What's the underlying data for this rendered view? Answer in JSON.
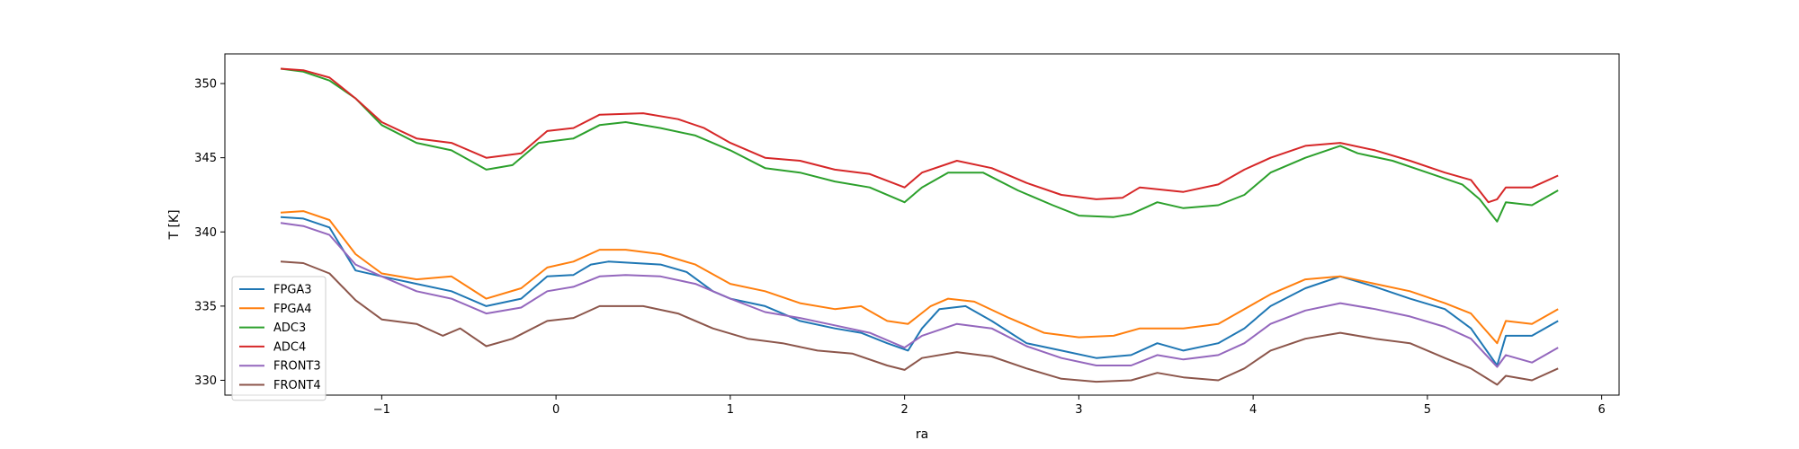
{
  "chart_data": {
    "type": "line",
    "title": "",
    "xlabel": "ra",
    "ylabel": "T [K]",
    "xlim": [
      -1.9,
      6.1
    ],
    "ylim": [
      329.0,
      352.0
    ],
    "xticks": [
      -1,
      0,
      1,
      2,
      3,
      4,
      5,
      6
    ],
    "yticks": [
      330,
      335,
      340,
      345,
      350
    ],
    "grid": false,
    "legend_position": "lower-left",
    "series": [
      {
        "name": "FPGA3",
        "color": "#1f77b4",
        "points": [
          [
            -1.58,
            341.0
          ],
          [
            -1.45,
            340.9
          ],
          [
            -1.3,
            340.3
          ],
          [
            -1.15,
            337.4
          ],
          [
            -1.0,
            337.0
          ],
          [
            -0.8,
            336.5
          ],
          [
            -0.6,
            336.0
          ],
          [
            -0.4,
            335.0
          ],
          [
            -0.2,
            335.5
          ],
          [
            -0.05,
            337.0
          ],
          [
            0.1,
            337.1
          ],
          [
            0.2,
            337.8
          ],
          [
            0.3,
            338.0
          ],
          [
            0.6,
            337.8
          ],
          [
            0.75,
            337.3
          ],
          [
            0.9,
            336.0
          ],
          [
            1.0,
            335.5
          ],
          [
            1.2,
            335.0
          ],
          [
            1.4,
            334.0
          ],
          [
            1.6,
            333.5
          ],
          [
            1.75,
            333.2
          ],
          [
            1.9,
            332.5
          ],
          [
            2.02,
            332.0
          ],
          [
            2.1,
            333.5
          ],
          [
            2.2,
            334.8
          ],
          [
            2.35,
            335.0
          ],
          [
            2.5,
            334.0
          ],
          [
            2.7,
            332.5
          ],
          [
            2.9,
            332.0
          ],
          [
            3.1,
            331.5
          ],
          [
            3.3,
            331.7
          ],
          [
            3.45,
            332.5
          ],
          [
            3.6,
            332.0
          ],
          [
            3.8,
            332.5
          ],
          [
            3.95,
            333.5
          ],
          [
            4.1,
            335.0
          ],
          [
            4.3,
            336.2
          ],
          [
            4.5,
            337.0
          ],
          [
            4.7,
            336.3
          ],
          [
            4.9,
            335.5
          ],
          [
            5.1,
            334.8
          ],
          [
            5.25,
            333.5
          ],
          [
            5.4,
            331.0
          ],
          [
            5.45,
            333.0
          ],
          [
            5.6,
            333.0
          ],
          [
            5.75,
            334.0
          ]
        ]
      },
      {
        "name": "FPGA4",
        "color": "#ff7f0e",
        "points": [
          [
            -1.58,
            341.3
          ],
          [
            -1.45,
            341.4
          ],
          [
            -1.3,
            340.8
          ],
          [
            -1.15,
            338.5
          ],
          [
            -1.0,
            337.2
          ],
          [
            -0.8,
            336.8
          ],
          [
            -0.6,
            337.0
          ],
          [
            -0.4,
            335.5
          ],
          [
            -0.2,
            336.2
          ],
          [
            -0.05,
            337.6
          ],
          [
            0.1,
            338.0
          ],
          [
            0.25,
            338.8
          ],
          [
            0.4,
            338.8
          ],
          [
            0.6,
            338.5
          ],
          [
            0.8,
            337.8
          ],
          [
            1.0,
            336.5
          ],
          [
            1.2,
            336.0
          ],
          [
            1.4,
            335.2
          ],
          [
            1.6,
            334.8
          ],
          [
            1.75,
            335.0
          ],
          [
            1.9,
            334.0
          ],
          [
            2.02,
            333.8
          ],
          [
            2.15,
            335.0
          ],
          [
            2.25,
            335.5
          ],
          [
            2.4,
            335.3
          ],
          [
            2.6,
            334.2
          ],
          [
            2.8,
            333.2
          ],
          [
            3.0,
            332.9
          ],
          [
            3.2,
            333.0
          ],
          [
            3.35,
            333.5
          ],
          [
            3.6,
            333.5
          ],
          [
            3.8,
            333.8
          ],
          [
            3.95,
            334.8
          ],
          [
            4.1,
            335.8
          ],
          [
            4.3,
            336.8
          ],
          [
            4.5,
            337.0
          ],
          [
            4.7,
            336.5
          ],
          [
            4.9,
            336.0
          ],
          [
            5.1,
            335.2
          ],
          [
            5.25,
            334.5
          ],
          [
            5.4,
            332.5
          ],
          [
            5.45,
            334.0
          ],
          [
            5.6,
            333.8
          ],
          [
            5.75,
            334.8
          ]
        ]
      },
      {
        "name": "ADC3",
        "color": "#2ca02c",
        "points": [
          [
            -1.58,
            351.0
          ],
          [
            -1.45,
            350.8
          ],
          [
            -1.3,
            350.2
          ],
          [
            -1.15,
            349.0
          ],
          [
            -1.0,
            347.2
          ],
          [
            -0.8,
            346.0
          ],
          [
            -0.6,
            345.5
          ],
          [
            -0.4,
            344.2
          ],
          [
            -0.25,
            344.5
          ],
          [
            -0.1,
            346.0
          ],
          [
            0.1,
            346.3
          ],
          [
            0.25,
            347.2
          ],
          [
            0.4,
            347.4
          ],
          [
            0.6,
            347.0
          ],
          [
            0.8,
            346.5
          ],
          [
            1.0,
            345.5
          ],
          [
            1.2,
            344.3
          ],
          [
            1.4,
            344.0
          ],
          [
            1.6,
            343.4
          ],
          [
            1.8,
            343.0
          ],
          [
            2.0,
            342.0
          ],
          [
            2.1,
            343.0
          ],
          [
            2.25,
            344.0
          ],
          [
            2.45,
            344.0
          ],
          [
            2.65,
            342.8
          ],
          [
            2.85,
            341.8
          ],
          [
            3.0,
            341.1
          ],
          [
            3.2,
            341.0
          ],
          [
            3.3,
            341.2
          ],
          [
            3.45,
            342.0
          ],
          [
            3.6,
            341.6
          ],
          [
            3.8,
            341.8
          ],
          [
            3.95,
            342.5
          ],
          [
            4.1,
            344.0
          ],
          [
            4.3,
            345.0
          ],
          [
            4.5,
            345.8
          ],
          [
            4.6,
            345.3
          ],
          [
            4.8,
            344.8
          ],
          [
            5.0,
            344.0
          ],
          [
            5.2,
            343.2
          ],
          [
            5.3,
            342.2
          ],
          [
            5.4,
            340.7
          ],
          [
            5.45,
            342.0
          ],
          [
            5.6,
            341.8
          ],
          [
            5.75,
            342.8
          ]
        ]
      },
      {
        "name": "ADC4",
        "color": "#d62728",
        "points": [
          [
            -1.58,
            351.0
          ],
          [
            -1.45,
            350.9
          ],
          [
            -1.3,
            350.4
          ],
          [
            -1.15,
            349.0
          ],
          [
            -1.0,
            347.4
          ],
          [
            -0.8,
            346.3
          ],
          [
            -0.6,
            346.0
          ],
          [
            -0.4,
            345.0
          ],
          [
            -0.2,
            345.3
          ],
          [
            -0.05,
            346.8
          ],
          [
            0.1,
            347.0
          ],
          [
            0.25,
            347.9
          ],
          [
            0.5,
            348.0
          ],
          [
            0.7,
            347.6
          ],
          [
            0.85,
            347.0
          ],
          [
            1.0,
            346.0
          ],
          [
            1.2,
            345.0
          ],
          [
            1.4,
            344.8
          ],
          [
            1.6,
            344.2
          ],
          [
            1.8,
            343.9
          ],
          [
            2.0,
            343.0
          ],
          [
            2.1,
            344.0
          ],
          [
            2.3,
            344.8
          ],
          [
            2.5,
            344.3
          ],
          [
            2.7,
            343.3
          ],
          [
            2.9,
            342.5
          ],
          [
            3.1,
            342.2
          ],
          [
            3.25,
            342.3
          ],
          [
            3.35,
            343.0
          ],
          [
            3.6,
            342.7
          ],
          [
            3.8,
            343.2
          ],
          [
            3.95,
            344.2
          ],
          [
            4.1,
            345.0
          ],
          [
            4.3,
            345.8
          ],
          [
            4.5,
            346.0
          ],
          [
            4.7,
            345.5
          ],
          [
            4.9,
            344.8
          ],
          [
            5.1,
            344.0
          ],
          [
            5.25,
            343.5
          ],
          [
            5.35,
            342.0
          ],
          [
            5.4,
            342.2
          ],
          [
            5.45,
            343.0
          ],
          [
            5.6,
            343.0
          ],
          [
            5.75,
            343.8
          ]
        ]
      },
      {
        "name": "FRONT3",
        "color": "#9467bd",
        "points": [
          [
            -1.58,
            340.6
          ],
          [
            -1.45,
            340.4
          ],
          [
            -1.3,
            339.8
          ],
          [
            -1.15,
            337.8
          ],
          [
            -1.0,
            337.0
          ],
          [
            -0.8,
            336.0
          ],
          [
            -0.6,
            335.5
          ],
          [
            -0.4,
            334.5
          ],
          [
            -0.2,
            334.9
          ],
          [
            -0.05,
            336.0
          ],
          [
            0.1,
            336.3
          ],
          [
            0.25,
            337.0
          ],
          [
            0.4,
            337.1
          ],
          [
            0.6,
            337.0
          ],
          [
            0.8,
            336.5
          ],
          [
            1.0,
            335.5
          ],
          [
            1.2,
            334.6
          ],
          [
            1.4,
            334.2
          ],
          [
            1.6,
            333.7
          ],
          [
            1.8,
            333.2
          ],
          [
            2.0,
            332.2
          ],
          [
            2.1,
            333.0
          ],
          [
            2.3,
            333.8
          ],
          [
            2.5,
            333.5
          ],
          [
            2.7,
            332.3
          ],
          [
            2.9,
            331.5
          ],
          [
            3.1,
            331.0
          ],
          [
            3.3,
            331.0
          ],
          [
            3.45,
            331.7
          ],
          [
            3.6,
            331.4
          ],
          [
            3.8,
            331.7
          ],
          [
            3.95,
            332.5
          ],
          [
            4.1,
            333.8
          ],
          [
            4.3,
            334.7
          ],
          [
            4.5,
            335.2
          ],
          [
            4.7,
            334.8
          ],
          [
            4.9,
            334.3
          ],
          [
            5.1,
            333.6
          ],
          [
            5.25,
            332.8
          ],
          [
            5.4,
            330.9
          ],
          [
            5.45,
            331.7
          ],
          [
            5.6,
            331.2
          ],
          [
            5.75,
            332.2
          ]
        ]
      },
      {
        "name": "FRONT4",
        "color": "#8c564b",
        "points": [
          [
            -1.58,
            338.0
          ],
          [
            -1.45,
            337.9
          ],
          [
            -1.3,
            337.2
          ],
          [
            -1.15,
            335.4
          ],
          [
            -1.0,
            334.1
          ],
          [
            -0.8,
            333.8
          ],
          [
            -0.65,
            333.0
          ],
          [
            -0.55,
            333.5
          ],
          [
            -0.4,
            332.3
          ],
          [
            -0.25,
            332.8
          ],
          [
            -0.05,
            334.0
          ],
          [
            0.1,
            334.2
          ],
          [
            0.25,
            335.0
          ],
          [
            0.5,
            335.0
          ],
          [
            0.7,
            334.5
          ],
          [
            0.9,
            333.5
          ],
          [
            1.1,
            332.8
          ],
          [
            1.3,
            332.5
          ],
          [
            1.5,
            332.0
          ],
          [
            1.7,
            331.8
          ],
          [
            1.9,
            331.0
          ],
          [
            2.0,
            330.7
          ],
          [
            2.1,
            331.5
          ],
          [
            2.3,
            331.9
          ],
          [
            2.5,
            331.6
          ],
          [
            2.7,
            330.8
          ],
          [
            2.9,
            330.1
          ],
          [
            3.1,
            329.9
          ],
          [
            3.3,
            330.0
          ],
          [
            3.45,
            330.5
          ],
          [
            3.6,
            330.2
          ],
          [
            3.8,
            330.0
          ],
          [
            3.95,
            330.8
          ],
          [
            4.1,
            332.0
          ],
          [
            4.3,
            332.8
          ],
          [
            4.5,
            333.2
          ],
          [
            4.7,
            332.8
          ],
          [
            4.9,
            332.5
          ],
          [
            5.1,
            331.5
          ],
          [
            5.25,
            330.8
          ],
          [
            5.4,
            329.7
          ],
          [
            5.45,
            330.3
          ],
          [
            5.6,
            330.0
          ],
          [
            5.75,
            330.8
          ]
        ]
      }
    ]
  }
}
